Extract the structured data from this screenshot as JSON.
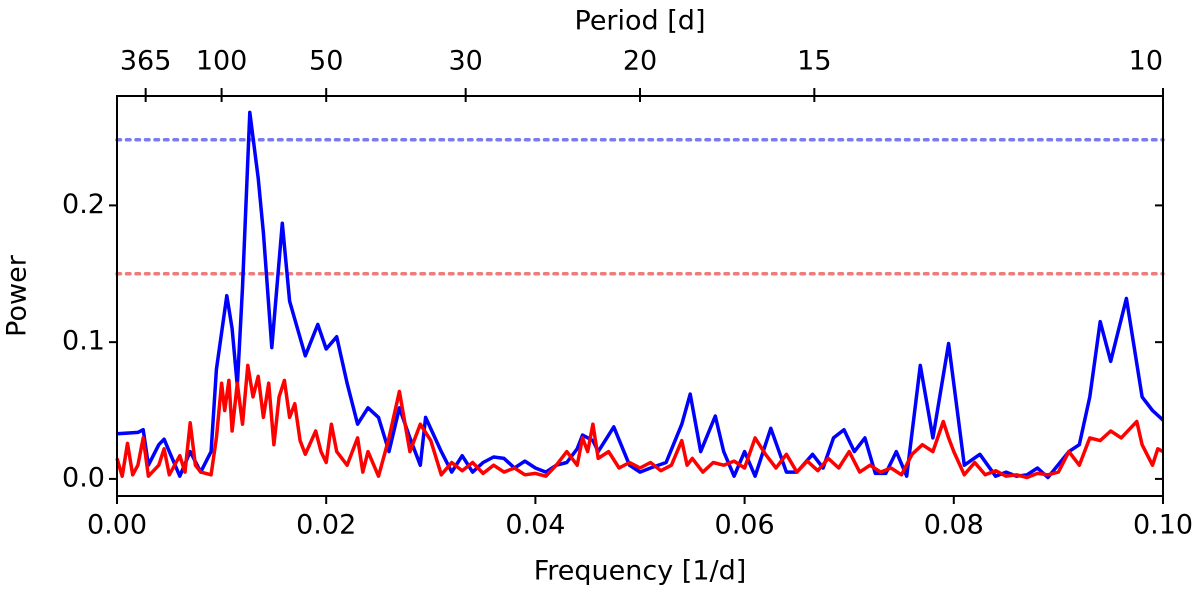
{
  "chart_data": {
    "type": "line",
    "xlabel": "Frequency [1/d]",
    "ylabel": "Power",
    "x2label": "Period [d]",
    "xlim": [
      0,
      0.1
    ],
    "ylim": [
      -0.0125,
      0.28
    ],
    "xticks": [
      {
        "value": 0,
        "label": "0.00"
      },
      0.02,
      0.04,
      0.06,
      0.08,
      {
        "value": 0.1,
        "label": "0.10"
      }
    ],
    "yticks": [
      {
        "value": 0,
        "label": "0.0"
      },
      0.1,
      0.2
    ],
    "x2ticks": [
      365,
      100,
      50,
      30,
      20,
      15,
      10
    ],
    "hlines": [
      {
        "value": 0.248,
        "color": "#7b7bf0"
      },
      {
        "value": 0.15,
        "color": "#f07b7b"
      }
    ],
    "series": [
      {
        "color": "#0000ff",
        "x": [
          0,
          0.002,
          0.0025,
          0.003,
          0.004,
          0.0045,
          0.005,
          0.006,
          0.007,
          0.008,
          0.009,
          0.0095,
          0.0105,
          0.011,
          0.0115,
          0.012,
          0.0127,
          0.0135,
          0.014,
          0.0148,
          0.0158,
          0.0165,
          0.018,
          0.0192,
          0.02,
          0.021,
          0.022,
          0.023,
          0.024,
          0.025,
          0.026,
          0.027,
          0.028,
          0.029,
          0.0295,
          0.031,
          0.032,
          0.033,
          0.034,
          0.035,
          0.036,
          0.037,
          0.038,
          0.039,
          0.04,
          0.041,
          0.042,
          0.043,
          0.044,
          0.0445,
          0.0455,
          0.046,
          0.0475,
          0.049,
          0.05,
          0.051,
          0.0525,
          0.054,
          0.0548,
          0.0558,
          0.0572,
          0.058,
          0.059,
          0.06,
          0.061,
          0.0625,
          0.064,
          0.065,
          0.0665,
          0.0675,
          0.0685,
          0.0695,
          0.0705,
          0.0715,
          0.0725,
          0.0735,
          0.0745,
          0.0755,
          0.0768,
          0.078,
          0.0795,
          0.081,
          0.0825,
          0.084,
          0.085,
          0.086,
          0.087,
          0.088,
          0.089,
          0.091,
          0.092,
          0.093,
          0.094,
          0.095,
          0.0965,
          0.098,
          0.099,
          0.1
        ],
        "values": [
          0.033,
          0.034,
          0.036,
          0.01,
          0.025,
          0.029,
          0.02,
          0.002,
          0.02,
          0.005,
          0.02,
          0.08,
          0.134,
          0.11,
          0.068,
          0.14,
          0.268,
          0.22,
          0.18,
          0.096,
          0.187,
          0.13,
          0.09,
          0.113,
          0.095,
          0.104,
          0.07,
          0.04,
          0.052,
          0.045,
          0.02,
          0.052,
          0.03,
          0.01,
          0.045,
          0.02,
          0.005,
          0.017,
          0.005,
          0.012,
          0.016,
          0.015,
          0.008,
          0.013,
          0.008,
          0.005,
          0.01,
          0.012,
          0.022,
          0.032,
          0.028,
          0.02,
          0.038,
          0.01,
          0.005,
          0.008,
          0.012,
          0.04,
          0.062,
          0.02,
          0.046,
          0.02,
          0.002,
          0.02,
          0.002,
          0.037,
          0.005,
          0.005,
          0.018,
          0.008,
          0.03,
          0.036,
          0.02,
          0.03,
          0.004,
          0.004,
          0.02,
          0.002,
          0.083,
          0.03,
          0.099,
          0.01,
          0.018,
          0.002,
          0.005,
          0.002,
          0.003,
          0.008,
          0.001,
          0.02,
          0.025,
          0.06,
          0.115,
          0.086,
          0.132,
          0.06,
          0.05,
          0.043
        ]
      },
      {
        "color": "#ff0000",
        "x": [
          0,
          0.0005,
          0.001,
          0.0015,
          0.002,
          0.0025,
          0.003,
          0.004,
          0.0045,
          0.005,
          0.006,
          0.0065,
          0.007,
          0.0075,
          0.008,
          0.009,
          0.0095,
          0.01,
          0.0103,
          0.0107,
          0.011,
          0.0115,
          0.012,
          0.0125,
          0.013,
          0.0135,
          0.014,
          0.0145,
          0.015,
          0.0155,
          0.016,
          0.0165,
          0.017,
          0.0175,
          0.018,
          0.019,
          0.0195,
          0.02,
          0.0205,
          0.021,
          0.022,
          0.023,
          0.0235,
          0.024,
          0.025,
          0.026,
          0.027,
          0.028,
          0.029,
          0.03,
          0.031,
          0.032,
          0.033,
          0.034,
          0.035,
          0.036,
          0.037,
          0.038,
          0.039,
          0.04,
          0.041,
          0.042,
          0.043,
          0.044,
          0.0445,
          0.045,
          0.0455,
          0.046,
          0.047,
          0.048,
          0.049,
          0.05,
          0.051,
          0.052,
          0.053,
          0.054,
          0.0545,
          0.055,
          0.056,
          0.057,
          0.058,
          0.059,
          0.06,
          0.061,
          0.062,
          0.063,
          0.064,
          0.065,
          0.066,
          0.067,
          0.068,
          0.069,
          0.07,
          0.071,
          0.072,
          0.073,
          0.074,
          0.075,
          0.076,
          0.077,
          0.078,
          0.079,
          0.0795,
          0.08,
          0.081,
          0.082,
          0.083,
          0.084,
          0.085,
          0.086,
          0.087,
          0.088,
          0.089,
          0.09,
          0.091,
          0.092,
          0.093,
          0.094,
          0.095,
          0.096,
          0.097,
          0.0975,
          0.098,
          0.099,
          0.0995,
          0.1
        ],
        "values": [
          0.015,
          0.002,
          0.026,
          0.003,
          0.01,
          0.03,
          0.002,
          0.01,
          0.022,
          0.003,
          0.017,
          0.005,
          0.041,
          0.01,
          0.005,
          0.003,
          0.03,
          0.07,
          0.05,
          0.072,
          0.035,
          0.07,
          0.04,
          0.083,
          0.06,
          0.075,
          0.045,
          0.07,
          0.025,
          0.06,
          0.072,
          0.045,
          0.055,
          0.028,
          0.018,
          0.035,
          0.02,
          0.012,
          0.04,
          0.02,
          0.01,
          0.03,
          0.005,
          0.02,
          0.002,
          0.03,
          0.064,
          0.02,
          0.04,
          0.028,
          0.003,
          0.012,
          0.006,
          0.012,
          0.004,
          0.01,
          0.005,
          0.008,
          0.003,
          0.004,
          0.002,
          0.01,
          0.02,
          0.01,
          0.03,
          0.02,
          0.04,
          0.015,
          0.02,
          0.008,
          0.012,
          0.008,
          0.012,
          0.006,
          0.01,
          0.028,
          0.01,
          0.015,
          0.005,
          0.012,
          0.01,
          0.013,
          0.008,
          0.03,
          0.018,
          0.008,
          0.018,
          0.005,
          0.013,
          0.006,
          0.015,
          0.008,
          0.02,
          0.005,
          0.01,
          0.005,
          0.008,
          0.003,
          0.018,
          0.025,
          0.02,
          0.042,
          0.03,
          0.02,
          0.003,
          0.012,
          0.003,
          0.006,
          0.002,
          0.003,
          0.001,
          0.004,
          0.003,
          0.005,
          0.02,
          0.01,
          0.03,
          0.028,
          0.035,
          0.03,
          0.038,
          0.042,
          0.025,
          0.01,
          0.022,
          0.02
        ]
      }
    ]
  }
}
